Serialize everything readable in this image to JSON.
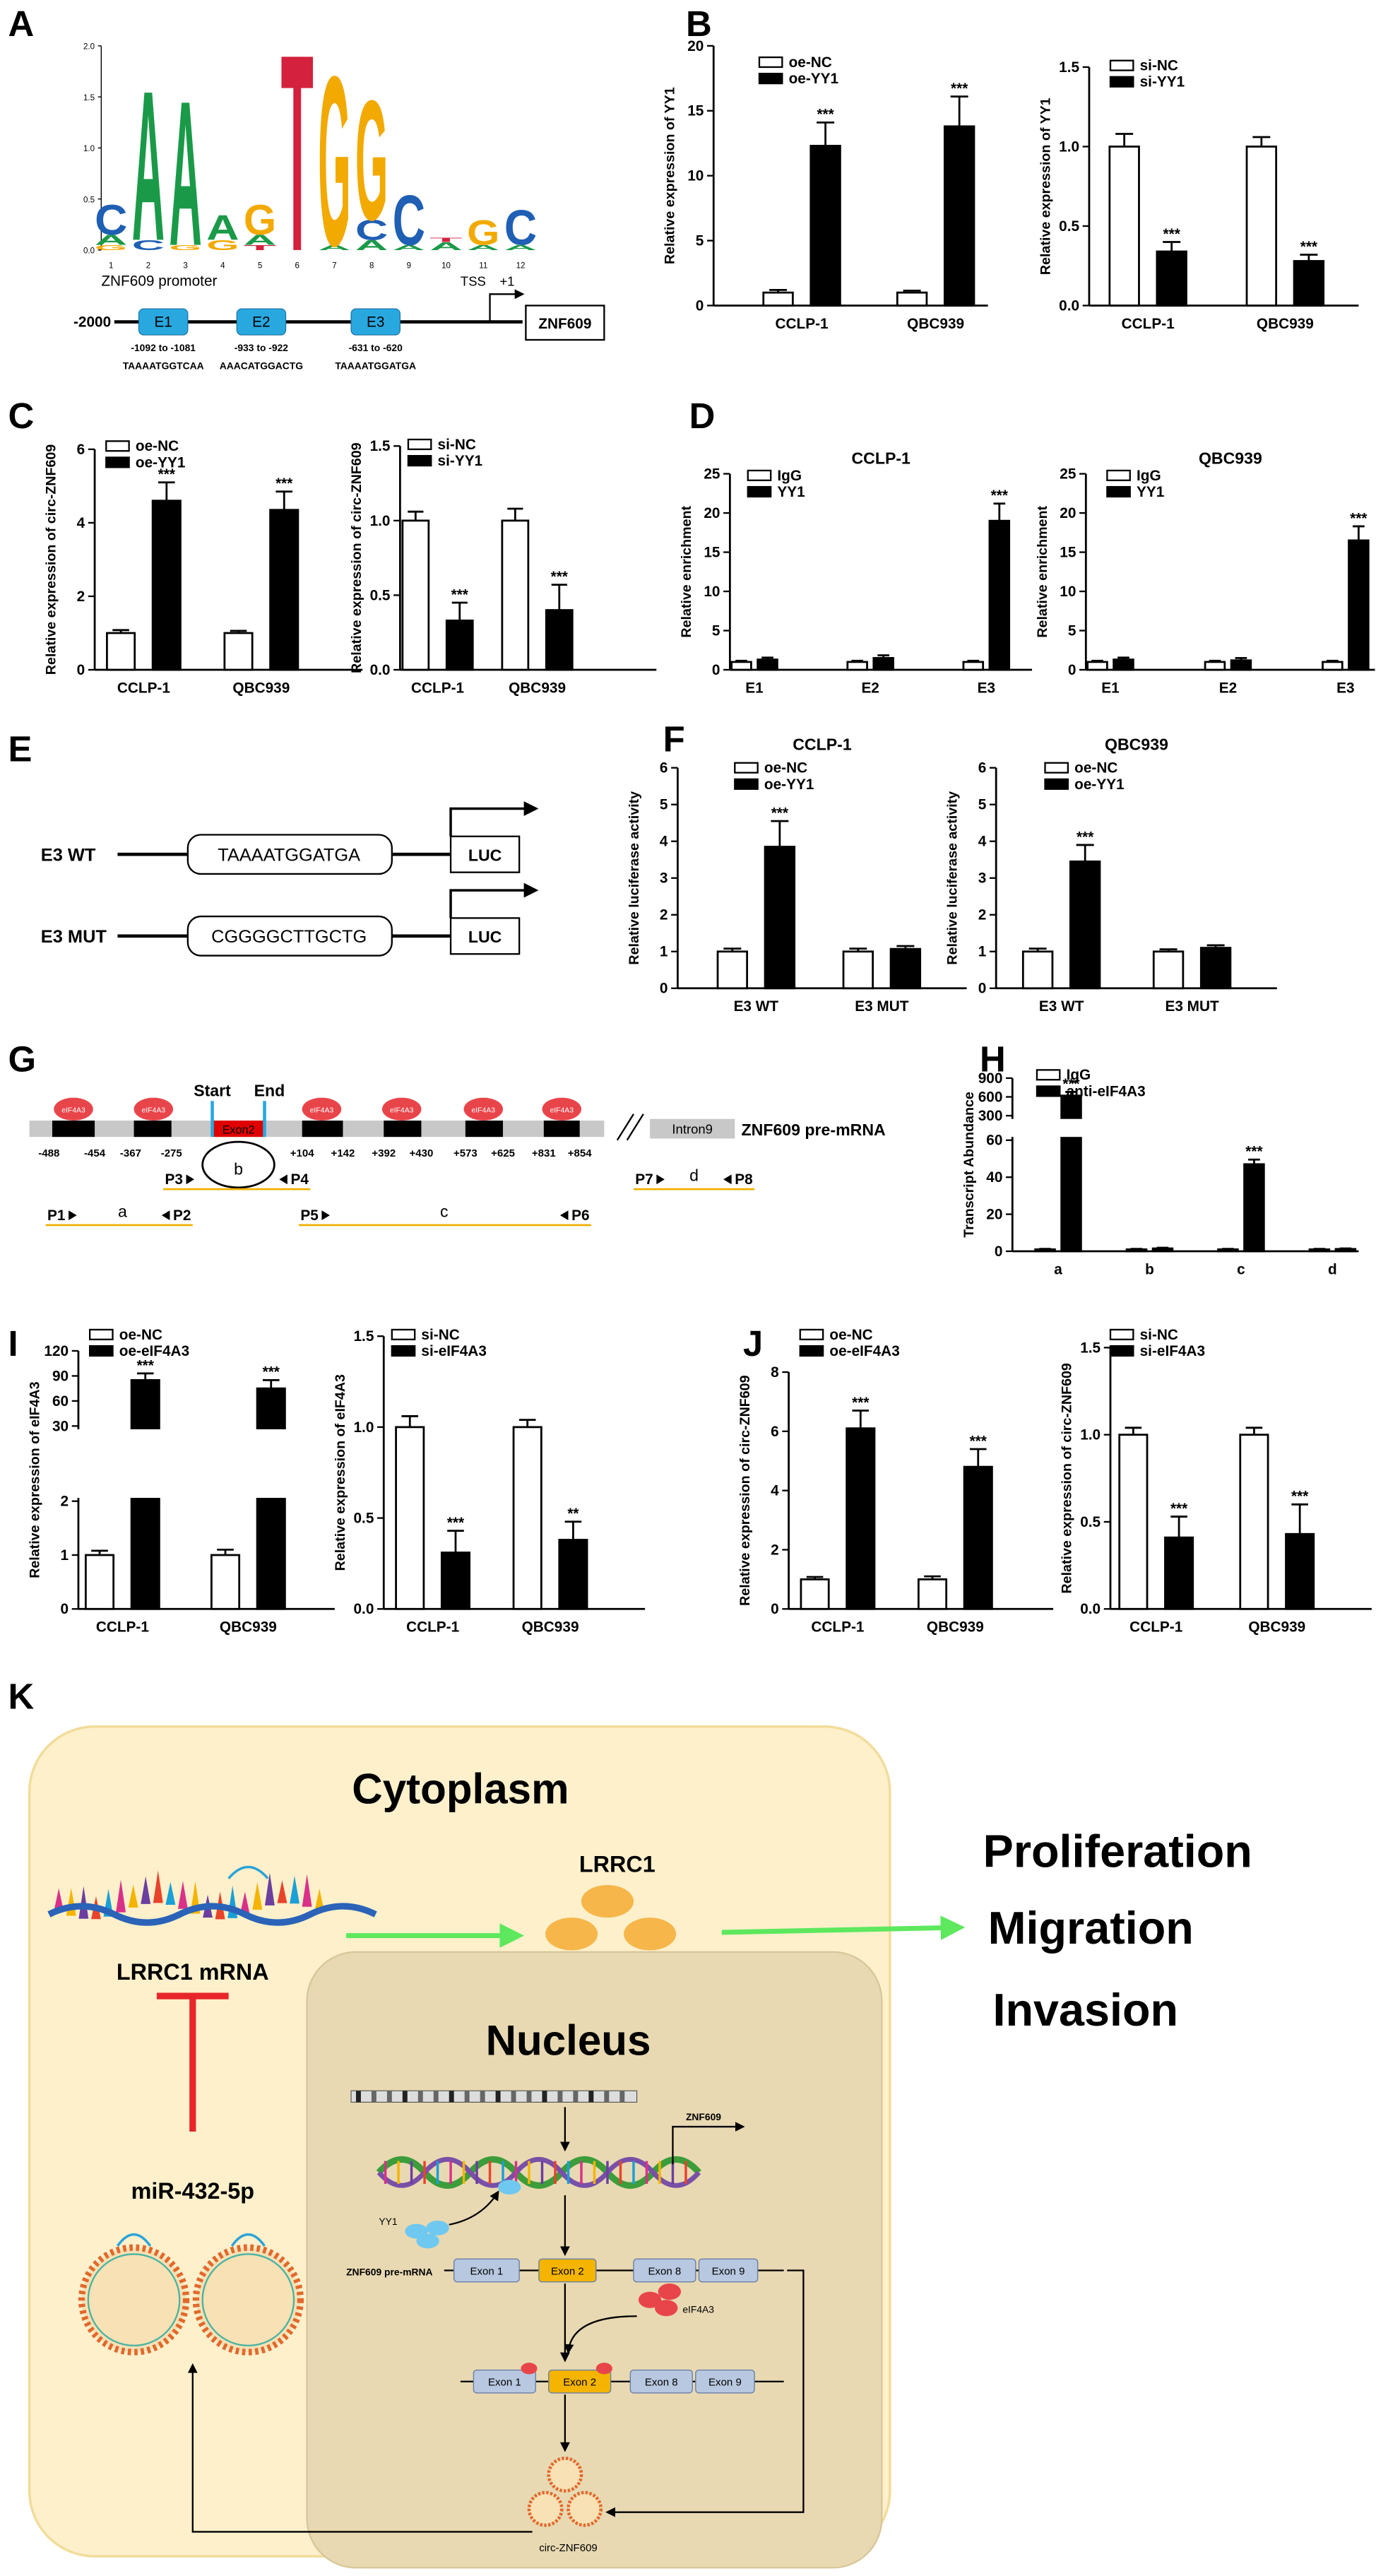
{
  "panel_labels": [
    "A",
    "B",
    "C",
    "D",
    "E",
    "F",
    "G",
    "H",
    "I",
    "J",
    "K"
  ],
  "chart_data": [
    {
      "type": "logo",
      "ylim": [
        0,
        2
      ],
      "yticks": [
        {
          "value": 0,
          "label": "0.0"
        },
        0.5,
        {
          "value": 1,
          "label": "1.0"
        },
        1.5,
        {
          "value": 2,
          "label": "2.0"
        }
      ],
      "letter_colors": {
        "A": "#1a9a48",
        "C": "#1f5fb4",
        "G": "#f2a900",
        "T": "#d4213d"
      },
      "positions": [
        1,
        2,
        3,
        4,
        5,
        6,
        7,
        8,
        9,
        10,
        11,
        12
      ],
      "stacks": [
        [
          {
            "letter": "G",
            "height": 0.05
          },
          {
            "letter": "A",
            "height": 0.1
          },
          {
            "letter": "C",
            "height": 0.3
          }
        ],
        [
          {
            "letter": "C",
            "height": 0.1
          },
          {
            "letter": "A",
            "height": 1.5
          }
        ],
        [
          {
            "letter": "G",
            "height": 0.05
          },
          {
            "letter": "A",
            "height": 1.45
          }
        ],
        [
          {
            "letter": "G",
            "height": 0.1
          },
          {
            "letter": "A",
            "height": 0.25
          }
        ],
        [
          {
            "letter": "T",
            "height": 0.05
          },
          {
            "letter": "A",
            "height": 0.1
          },
          {
            "letter": "G",
            "height": 0.3
          }
        ],
        [
          {
            "letter": "T",
            "height": 1.97
          }
        ],
        [
          {
            "letter": "A",
            "height": 0.05
          },
          {
            "letter": "G",
            "height": 1.7
          }
        ],
        [
          {
            "letter": "A",
            "height": 0.1
          },
          {
            "letter": "C",
            "height": 0.2
          },
          {
            "letter": "G",
            "height": 1.2
          }
        ],
        [
          {
            "letter": "A",
            "height": 0.05
          },
          {
            "letter": "C",
            "height": 0.5
          }
        ],
        [
          {
            "letter": "A",
            "height": 0.08
          },
          {
            "letter": "T",
            "height": 0.04
          }
        ],
        [
          {
            "letter": "A",
            "height": 0.05
          },
          {
            "letter": "G",
            "height": 0.25
          }
        ],
        [
          {
            "letter": "A",
            "height": 0.05
          },
          {
            "letter": "C",
            "height": 0.35
          }
        ]
      ]
    },
    {
      "type": "bar",
      "ylabel": "Relative expression of YY1",
      "categories": [
        "CCLP-1",
        "QBC939"
      ],
      "series": [
        {
          "name": "oe-NC",
          "color": "#ffffff",
          "values": [
            1,
            1
          ],
          "errors": [
            0.2,
            0.15
          ]
        },
        {
          "name": "oe-YY1",
          "color": "#000000",
          "values": [
            12.3,
            13.8
          ],
          "errors": [
            1.8,
            2.3
          ],
          "annotations": [
            "***",
            "***"
          ]
        }
      ],
      "ylim": [
        0,
        20
      ],
      "yticks": [
        0,
        5,
        10,
        15,
        20
      ]
    },
    {
      "type": "bar",
      "ylabel": "Relative expression of YY1",
      "categories": [
        "CCLP-1",
        "QBC939"
      ],
      "series": [
        {
          "name": "si-NC",
          "color": "#ffffff",
          "values": [
            1,
            1
          ],
          "errors": [
            0.08,
            0.06
          ]
        },
        {
          "name": "si-YY1",
          "color": "#000000",
          "values": [
            0.34,
            0.28
          ],
          "errors": [
            0.06,
            0.04
          ],
          "annotations": [
            "***",
            "***"
          ]
        }
      ],
      "ylim": [
        0,
        1.5
      ],
      "yticks": [
        {
          "value": 0,
          "label": "0.0"
        },
        0.5,
        {
          "value": 1,
          "label": "1.0"
        },
        1.5
      ]
    },
    {
      "type": "bar",
      "ylabel": "Relative expression of circ-ZNF609",
      "categories": [
        "CCLP-1",
        "QBC939"
      ],
      "series": [
        {
          "name": "oe-NC",
          "color": "#ffffff",
          "values": [
            1,
            1
          ],
          "errors": [
            0.08,
            0.06
          ]
        },
        {
          "name": "oe-YY1",
          "color": "#000000",
          "values": [
            4.6,
            4.35
          ],
          "errors": [
            0.5,
            0.5
          ],
          "annotations": [
            "***",
            "***"
          ]
        }
      ],
      "ylim": [
        0,
        6
      ],
      "yticks": [
        0,
        2,
        4,
        6
      ]
    },
    {
      "type": "bar",
      "ylabel": "Relative expression of circ-ZNF609",
      "categories": [
        "CCLP-1",
        "QBC939"
      ],
      "series": [
        {
          "name": "si-NC",
          "color": "#ffffff",
          "values": [
            1,
            1
          ],
          "errors": [
            0.06,
            0.08
          ]
        },
        {
          "name": "si-YY1",
          "color": "#000000",
          "values": [
            0.33,
            0.4
          ],
          "errors": [
            0.12,
            0.17
          ],
          "annotations": [
            "***",
            "***"
          ]
        }
      ],
      "ylim": [
        0,
        1.5
      ],
      "yticks": [
        {
          "value": 0,
          "label": "0.0"
        },
        0.5,
        {
          "value": 1,
          "label": "1.0"
        },
        1.5
      ]
    },
    {
      "type": "bar",
      "title": "CCLP-1",
      "ylabel": "Relative enrichment",
      "categories": [
        "E1",
        "E2",
        "E3"
      ],
      "series": [
        {
          "name": "IgG",
          "color": "#ffffff",
          "values": [
            1,
            1,
            1
          ],
          "errors": [
            0.15,
            0.15,
            0.15
          ]
        },
        {
          "name": "YY1",
          "color": "#000000",
          "values": [
            1.3,
            1.5,
            19
          ],
          "errors": [
            0.25,
            0.35,
            2.2
          ],
          "annotations": [
            null,
            null,
            "***"
          ]
        }
      ],
      "ylim": [
        0,
        25
      ],
      "yticks": [
        0,
        5,
        10,
        15,
        20,
        25
      ]
    },
    {
      "type": "bar",
      "title": "QBC939",
      "ylabel": "Relative enrichment",
      "categories": [
        "E1",
        "E2",
        "E3"
      ],
      "series": [
        {
          "name": "IgG",
          "color": "#ffffff",
          "values": [
            1,
            1,
            1
          ],
          "errors": [
            0.15,
            0.15,
            0.15
          ]
        },
        {
          "name": "YY1",
          "color": "#000000",
          "values": [
            1.3,
            1.2,
            16.5
          ],
          "errors": [
            0.25,
            0.3,
            1.8
          ],
          "annotations": [
            null,
            null,
            "***"
          ]
        }
      ],
      "ylim": [
        0,
        25
      ],
      "yticks": [
        0,
        5,
        10,
        15,
        20,
        25
      ]
    },
    {
      "type": "bar",
      "title": "CCLP-1",
      "ylabel": "Relative luciferase activity",
      "categories": [
        "E3 WT",
        "E3 MUT"
      ],
      "series": [
        {
          "name": "oe-NC",
          "color": "#ffffff",
          "values": [
            1,
            1
          ],
          "errors": [
            0.08,
            0.08
          ]
        },
        {
          "name": "oe-YY1",
          "color": "#000000",
          "values": [
            3.85,
            1.07
          ],
          "errors": [
            0.7,
            0.08
          ],
          "annotations": [
            "***",
            null
          ]
        }
      ],
      "ylim": [
        0,
        6
      ],
      "yticks": [
        0,
        1,
        2,
        3,
        4,
        5,
        6
      ]
    },
    {
      "type": "bar",
      "title": "QBC939",
      "ylabel": "Relative luciferase activity",
      "categories": [
        "E3 WT",
        "E3 MUT"
      ],
      "series": [
        {
          "name": "oe-NC",
          "color": "#ffffff",
          "values": [
            1,
            1
          ],
          "errors": [
            0.08,
            0.06
          ]
        },
        {
          "name": "oe-YY1",
          "color": "#000000",
          "values": [
            3.45,
            1.1
          ],
          "errors": [
            0.45,
            0.07
          ],
          "annotations": [
            "***",
            null
          ]
        }
      ],
      "ylim": [
        0,
        6
      ],
      "yticks": [
        0,
        1,
        2,
        3,
        4,
        5,
        6
      ]
    },
    {
      "type": "bar",
      "ylabel": "Transcript Abundance",
      "categories": [
        "a",
        "b",
        "c",
        "d"
      ],
      "series": [
        {
          "name": "IgG",
          "color": "#ffffff",
          "values": [
            1,
            1,
            1,
            1
          ],
          "errors": [
            0.3,
            0.3,
            0.3,
            0.3
          ]
        },
        {
          "name": "anti-eIF4A3",
          "color": "#000000",
          "values": [
            620,
            1.5,
            47,
            1.2
          ],
          "errors": [
            60,
            0.4,
            2.5,
            0.3
          ],
          "annotations": [
            "***",
            null,
            "***",
            null
          ]
        }
      ],
      "segments": [
        {
          "ylim": [
            0,
            60
          ],
          "yticks": [
            0,
            20,
            40,
            60
          ]
        },
        {
          "ylim": [
            300,
            900
          ],
          "yticks": [
            300,
            600,
            900
          ]
        }
      ]
    },
    {
      "type": "bar",
      "ylabel": "Relative expression of eIF4A3",
      "categories": [
        "CCLP-1",
        "QBC939"
      ],
      "series": [
        {
          "name": "oe-NC",
          "color": "#ffffff",
          "values": [
            1,
            1
          ],
          "errors": [
            0.08,
            0.1
          ]
        },
        {
          "name": "oe-eIF4A3",
          "color": "#000000",
          "values": [
            85,
            75
          ],
          "errors": [
            8,
            10
          ],
          "annotations": [
            "***",
            "***"
          ]
        }
      ],
      "segments": [
        {
          "ylim": [
            0,
            2
          ],
          "yticks": [
            0,
            1,
            2
          ]
        },
        {
          "ylim": [
            30,
            120
          ],
          "yticks": [
            30,
            60,
            90,
            120
          ]
        }
      ]
    },
    {
      "type": "bar",
      "ylabel": "Relative expression of eIF4A3",
      "categories": [
        "CCLP-1",
        "QBC939"
      ],
      "series": [
        {
          "name": "si-NC",
          "color": "#ffffff",
          "values": [
            1,
            1
          ],
          "errors": [
            0.06,
            0.04
          ]
        },
        {
          "name": "si-eIF4A3",
          "color": "#000000",
          "values": [
            0.31,
            0.38
          ],
          "errors": [
            0.12,
            0.1
          ],
          "annotations": [
            "***",
            "**"
          ]
        }
      ],
      "ylim": [
        0,
        1.5
      ],
      "yticks": [
        {
          "value": 0,
          "label": "0.0"
        },
        0.5,
        {
          "value": 1,
          "label": "1.0"
        },
        1.5
      ]
    },
    {
      "type": "bar",
      "ylabel": "Relative expression of circ-ZNF609",
      "categories": [
        "CCLP-1",
        "QBC939"
      ],
      "series": [
        {
          "name": "oe-NC",
          "color": "#ffffff",
          "values": [
            1,
            1
          ],
          "errors": [
            0.08,
            0.1
          ]
        },
        {
          "name": "oe-eIF4A3",
          "color": "#000000",
          "values": [
            6.1,
            4.8
          ],
          "errors": [
            0.6,
            0.6
          ],
          "annotations": [
            "***",
            "***"
          ]
        }
      ],
      "ylim": [
        0,
        8
      ],
      "yticks": [
        0,
        2,
        4,
        6,
        8
      ]
    },
    {
      "type": "bar",
      "ylabel": "Relative expression of circ-ZNF609",
      "categories": [
        "CCLP-1",
        "QBC939"
      ],
      "series": [
        {
          "name": "si-NC",
          "color": "#ffffff",
          "values": [
            1,
            1
          ],
          "errors": [
            0.04,
            0.04
          ]
        },
        {
          "name": "si-eIF4A3",
          "color": "#000000",
          "values": [
            0.41,
            0.43
          ],
          "errors": [
            0.12,
            0.17
          ],
          "annotations": [
            "***",
            "***"
          ]
        }
      ],
      "ylim": [
        0,
        1.5
      ],
      "yticks": [
        {
          "value": 0,
          "label": "0.0"
        },
        0.5,
        {
          "value": 1,
          "label": "1.0"
        },
        1.5
      ]
    }
  ],
  "promoter": {
    "title": "ZNF609 promoter",
    "start": "-2000",
    "tss": "TSS",
    "plus1": "+1",
    "gene": "ZNF609",
    "elements": [
      {
        "name": "E1",
        "range": "-1092 to -1081",
        "sequence": "TAAAATGGTCAA"
      },
      {
        "name": "E2",
        "range": "-933 to -922",
        "sequence": "AAACATGGACTG"
      },
      {
        "name": "E3",
        "range": "-631 to -620",
        "sequence": "TAAAATGGATGA"
      }
    ]
  },
  "constructs": [
    {
      "name": "E3 WT",
      "sequence": "TAAAATGGATGA",
      "reporter": "LUC"
    },
    {
      "name": "E3 MUT",
      "sequence": "CGGGGCTTGCTG",
      "reporter": "LUC"
    }
  ],
  "gene_structure": {
    "protein": "eIF4A3",
    "start": "Start",
    "end": "End",
    "exon": "Exon2",
    "positions": [
      "-488",
      "-454",
      "-367",
      "-275",
      "+104",
      "+142",
      "+392",
      "+430",
      "+573",
      "+625",
      "+831",
      "+854"
    ],
    "intron": "Intron9",
    "transcript": "ZNF609 pre-mRNA",
    "primers": [
      {
        "left": "P3",
        "right": "P4",
        "label": "b"
      },
      {
        "left": "P1",
        "right": "P2",
        "label": "a"
      },
      {
        "left": "P5",
        "right": "P6",
        "label": "c"
      },
      {
        "left": "P7",
        "right": "P8",
        "label": "d"
      }
    ]
  },
  "schematic": {
    "cytoplasm": "Cytoplasm",
    "nucleus": "Nucleus",
    "lrrc1": "LRRC1",
    "mrna": "LRRC1 mRNA",
    "mirna": "miR-432-5p",
    "outcomes": [
      "Proliferation",
      "Migration",
      "Invasion"
    ],
    "gene": "ZNF609",
    "tf": "YY1",
    "premrna": "ZNF609 pre-mRNA",
    "exons": [
      "Exon 1",
      "Exon 2",
      "Exon 8",
      "Exon 9"
    ],
    "protein": "eIF4A3",
    "circ": "circ-ZNF609"
  }
}
